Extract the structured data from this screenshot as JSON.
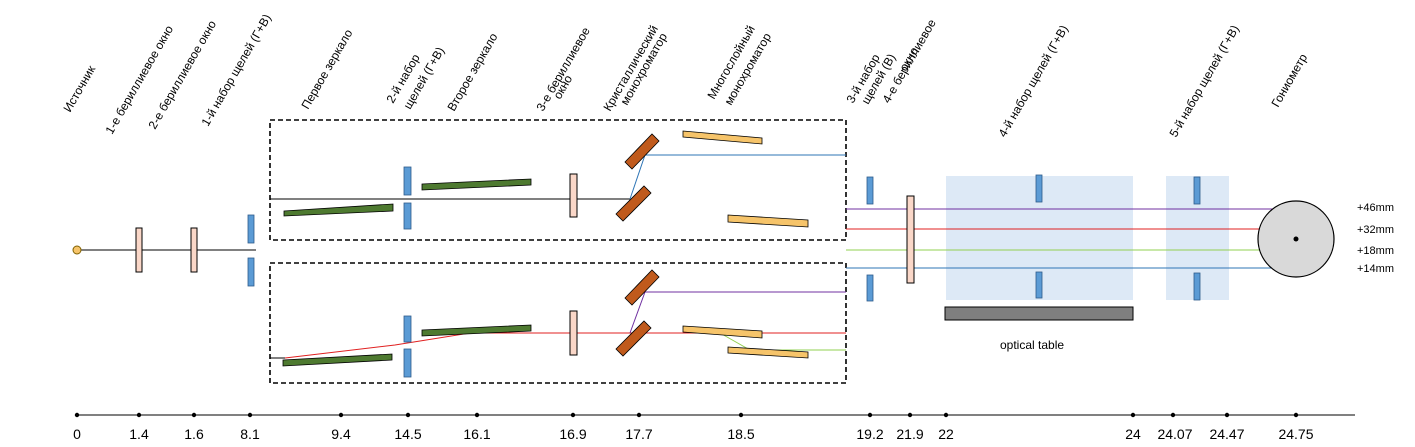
{
  "labels": {
    "source": "Источник",
    "be_window_1": "1-е бериллиевое окно",
    "be_window_2": "2-е бериллиевое окно",
    "slits_1": "1-й набор щелей (Г+В)",
    "mirror_1": "Первое зеркало",
    "slits_2_line1": "2-й набор",
    "slits_2_line2": "щелей (Г+В)",
    "mirror_2": "Второе зеркало",
    "be_window_3_line1": "3-е бериллиевое",
    "be_window_3_line2": "окно",
    "crystal_mono_line1": "Кристаллический",
    "crystal_mono_line2": "монохроматор",
    "multilayer_mono_line1": "Многослойный",
    "multilayer_mono_line2": "монохроматор",
    "slits_3_line1": "3-й набор",
    "slits_3_line2": "щелей (В)",
    "be_window_4_line1": "4-е бериллиевое",
    "be_window_4_line2": "окно",
    "slits_4": "4-й набор щелей (Г+В)",
    "slits_5": "5-й набор щелей (Г+В)",
    "goniometer": "Гониометр"
  },
  "optical_table": "optical table",
  "heights": [
    "+46mm",
    "+32mm",
    "+18mm",
    "+14mm"
  ],
  "axis_ticks": [
    "0",
    "1.4",
    "1.6",
    "8.1",
    "9.4",
    "14.5",
    "16.1",
    "16.9",
    "17.7",
    "18.5",
    "19.2",
    "21.9",
    "22",
    "24",
    "24.07",
    "24.47",
    "24.75"
  ],
  "colors": {
    "mirror": "#4e7a30",
    "crystal": "#c05a1c",
    "multilayer": "#f6c46a",
    "slit": "#5b9bd5",
    "window": "#fad7c8",
    "table_bg": "#dde9f6",
    "table": "#7f7f7f",
    "beam_purple": "#7030a0",
    "beam_red": "#e02020",
    "beam_green": "#92d050",
    "beam_blue": "#2e75b6"
  }
}
